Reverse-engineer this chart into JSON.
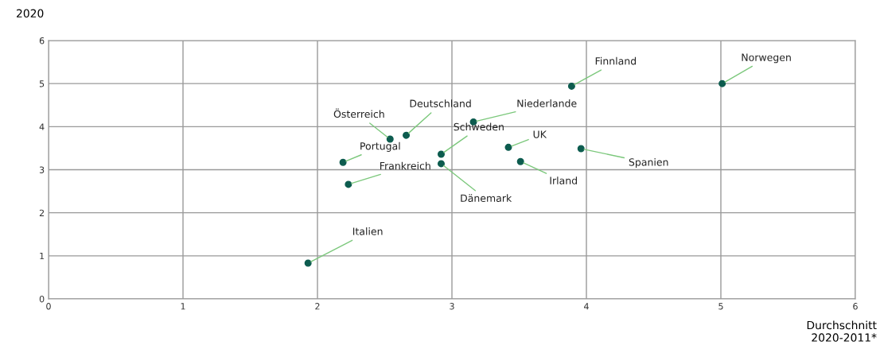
{
  "chart_data": {
    "type": "scatter",
    "title": "2020",
    "xlabel": "Durchschnitt\n2020-2011*",
    "x": [
      1.93,
      2.19,
      2.23,
      2.54,
      2.66,
      2.92,
      2.92,
      3.16,
      3.42,
      3.51,
      3.96,
      3.89,
      5.01
    ],
    "series": [
      {
        "color": "#0d5c4f",
        "values": [
          0.83,
          3.17,
          2.66,
          3.71,
          3.8,
          3.36,
          3.14,
          4.11,
          3.52,
          3.19,
          3.49,
          4.94,
          5.0
        ]
      }
    ],
    "annotations": [
      {
        "text": "Italien",
        "x": 1.93,
        "y": 0.83
      },
      {
        "text": "Portugal",
        "x": 2.19,
        "y": 3.17
      },
      {
        "text": "Frankreich",
        "x": 2.23,
        "y": 2.66
      },
      {
        "text": "Österreich",
        "x": 2.54,
        "y": 3.71
      },
      {
        "text": "Deutschland",
        "x": 2.66,
        "y": 3.8
      },
      {
        "text": "Schweden",
        "x": 2.92,
        "y": 3.36
      },
      {
        "text": "Dänemark",
        "x": 2.92,
        "y": 3.14
      },
      {
        "text": "Niederlande",
        "x": 3.16,
        "y": 4.11
      },
      {
        "text": "UK",
        "x": 3.42,
        "y": 3.52
      },
      {
        "text": "Irland",
        "x": 3.51,
        "y": 3.19
      },
      {
        "text": "Spanien",
        "x": 3.96,
        "y": 3.49
      },
      {
        "text": "Finnland",
        "x": 3.89,
        "y": 4.94
      },
      {
        "text": "Norwegen",
        "x": 5.01,
        "y": 5.0
      }
    ],
    "xlim": [
      0,
      6
    ],
    "ylim": [
      0,
      6
    ],
    "xticks": [
      0,
      1,
      2,
      3,
      4,
      5,
      6
    ],
    "yticks": [
      0,
      1,
      2,
      3,
      4,
      5,
      6
    ],
    "grid": true,
    "marker": "circle",
    "legend": false
  }
}
